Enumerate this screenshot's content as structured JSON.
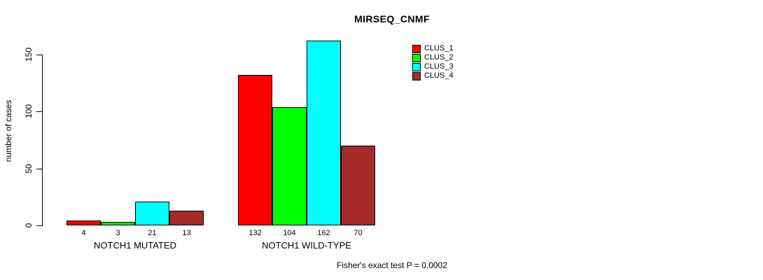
{
  "chart_data": {
    "type": "bar",
    "title": "MIRSEQ_CNMF",
    "ylabel": "number of cases",
    "xlabel": "",
    "categories": [
      "NOTCH1 MUTATED",
      "NOTCH1 WILD-TYPE"
    ],
    "series": [
      {
        "name": "CLUS_1",
        "color": "#FF0000",
        "values": [
          4,
          132
        ]
      },
      {
        "name": "CLUS_2",
        "color": "#00FF00",
        "values": [
          3,
          104
        ]
      },
      {
        "name": "CLUS_3",
        "color": "#00FFFF",
        "values": [
          21,
          162
        ]
      },
      {
        "name": "CLUS_4",
        "color": "#A52A2A",
        "values": [
          13,
          70
        ]
      }
    ],
    "yticks": [
      0,
      50,
      100,
      150
    ],
    "ylim": [
      0,
      150
    ],
    "grid": false,
    "show_bar_value_labels": true,
    "legend_position": "top-right",
    "annotation": "Fisher's exact test P = 0.0002"
  }
}
